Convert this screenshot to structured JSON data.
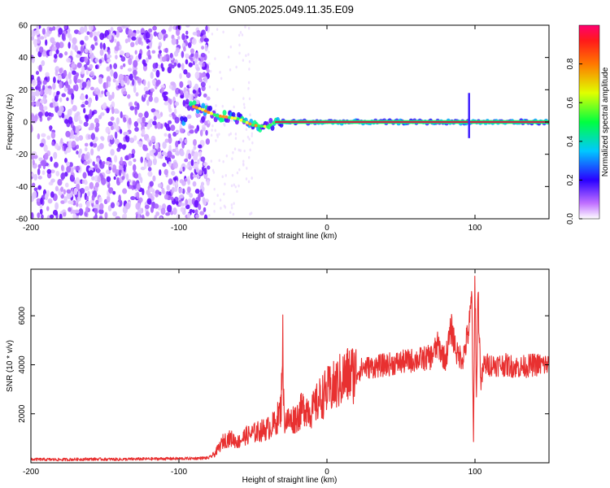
{
  "title": "GN05.2025.049.11.35.E09",
  "colors": {
    "snr_line": "#e83030",
    "scatter_band": "#7b3fe4",
    "ridge": "#d2204a",
    "axis": "#000000"
  },
  "chart_data": [
    {
      "type": "heatmap",
      "name": "spectrogram",
      "xlabel": "Height of straight line (km)",
      "ylabel": "Frequency (Hz)",
      "xlim": [
        -200,
        150
      ],
      "ylim": [
        -60,
        60
      ],
      "xticks": [
        -200,
        -100,
        0,
        100
      ],
      "yticks": [
        -60,
        -40,
        -20,
        0,
        20,
        40,
        60
      ],
      "colorbar": {
        "label": "Normalized spectral amplitude",
        "range": [
          0.0,
          1.0
        ],
        "ticks": [
          0.0,
          0.2,
          0.4,
          0.6,
          0.8
        ],
        "tick_labels": [
          "0.0",
          "0.2",
          "0.4",
          "0.6",
          "0.8"
        ],
        "colormap": "rainbow (white-violet-blue-cyan-green-yellow-orange-red-magenta)"
      },
      "features": {
        "noise_region_x": [
          -200,
          -80
        ],
        "signal_ridge": [
          {
            "x": -95,
            "freq": 11
          },
          {
            "x": -85,
            "freq": 8
          },
          {
            "x": -75,
            "freq": 4
          },
          {
            "x": -60,
            "freq": 2
          },
          {
            "x": -50,
            "freq": -2
          },
          {
            "x": -40,
            "freq": -3
          },
          {
            "x": -35,
            "freq": 0
          },
          {
            "x": 0,
            "freq": 0
          },
          {
            "x": 150,
            "freq": 0
          }
        ],
        "spike": {
          "x": 96,
          "freq_range": [
            -10,
            18
          ]
        }
      }
    },
    {
      "type": "line",
      "name": "snr",
      "xlabel": "Height of straight line (km)",
      "ylabel": "SNR (10 * v/v)",
      "xlim": [
        -200,
        150
      ],
      "ylim": [
        0,
        7900
      ],
      "xticks": [
        -200,
        -100,
        0,
        100
      ],
      "yticks": [
        2000,
        4000,
        6000
      ],
      "series": [
        {
          "x": [
            -200,
            -180,
            -160,
            -140,
            -120,
            -100,
            -90,
            -80,
            -76,
            -72,
            -70,
            -65,
            -60,
            -55,
            -50,
            -45,
            -40,
            -35,
            -31,
            -30,
            -29,
            -25,
            -20,
            -15,
            -10,
            -5,
            0,
            5,
            10,
            15,
            20,
            25,
            30,
            40,
            50,
            60,
            70,
            75,
            80,
            84,
            88,
            92,
            96,
            98,
            99,
            100,
            101,
            102,
            104,
            106,
            110,
            120,
            130,
            140,
            150
          ],
          "y": [
            140,
            130,
            150,
            140,
            160,
            170,
            180,
            200,
            350,
            700,
            900,
            1000,
            850,
            1100,
            1200,
            1300,
            1400,
            1600,
            2200,
            5300,
            1800,
            1700,
            1900,
            2300,
            2100,
            2600,
            2900,
            3100,
            3400,
            3600,
            3700,
            3900,
            3900,
            4000,
            4100,
            4200,
            4300,
            4800,
            4200,
            5500,
            4400,
            4300,
            5500,
            6800,
            600,
            7800,
            2500,
            7000,
            3200,
            4000,
            4000,
            4000,
            3900,
            4000,
            4000
          ]
        }
      ]
    }
  ]
}
